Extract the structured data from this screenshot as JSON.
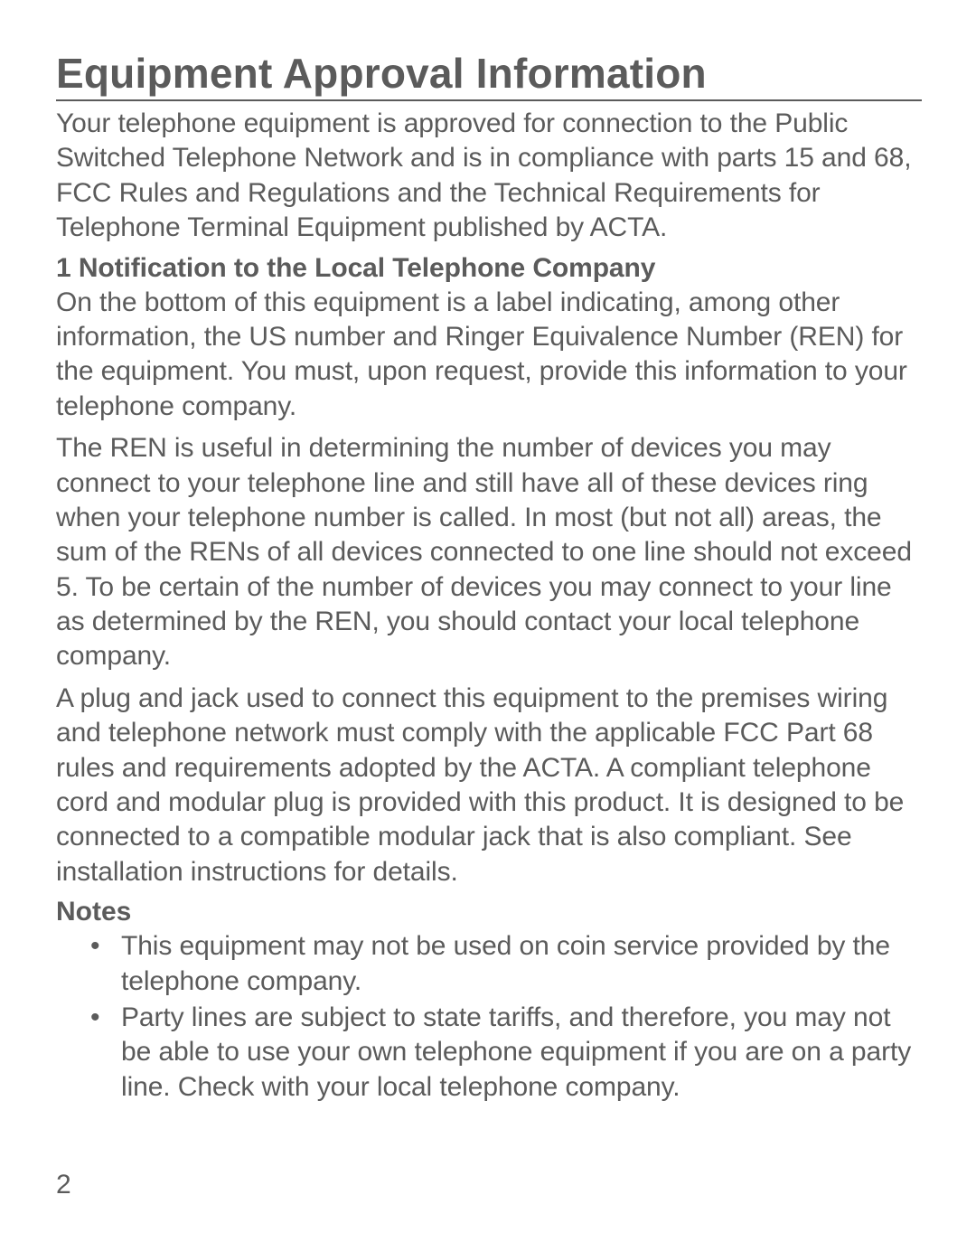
{
  "page": {
    "title": "Equipment Approval Information",
    "intro": "Your telephone equipment is approved for connection to the Public Switched Telephone Network and is in compliance with parts 15 and 68, FCC Rules and Regulations and the Technical Requirements for Telephone Terminal Equipment published by ACTA.",
    "section1_heading": "1 Notification to the Local Telephone Company",
    "para1": "On the bottom of this equipment is a label indicating, among other information, the US number and Ringer Equivalence Number (REN) for the equipment. You must, upon request, provide this information to your telephone company.",
    "para2": "The REN is useful in determining the number of devices you may connect to your telephone line and still have all of these devices ring when your telephone number is called. In most (but not all) areas, the sum of the RENs of all devices connected to one line should not exceed 5. To be certain of the number of devices you may connect to your line as determined by the REN, you should contact your local telephone company.",
    "para3": "A plug and jack used to connect this equipment to the premises wiring and telephone network must comply with the applicable FCC Part 68 rules and requirements adopted by the ACTA. A compliant telephone cord and modular plug is provided with this product. It is designed to be connected to a compatible modular jack that is also compliant. See installation instructions for details.",
    "notes_heading": "Notes",
    "notes": [
      "This equipment may not be used on coin service provided by the telephone company.",
      "Party lines are subject to state tariffs, and therefore, you may not be able to use your own telephone equipment if you are on a party line. Check with your local telephone company."
    ],
    "page_number": "2"
  },
  "style": {
    "text_color": "#5b5b5b",
    "background_color": "#ffffff",
    "title_fontsize": 46,
    "body_fontsize": 30,
    "underline_color": "#5b5b5b"
  }
}
